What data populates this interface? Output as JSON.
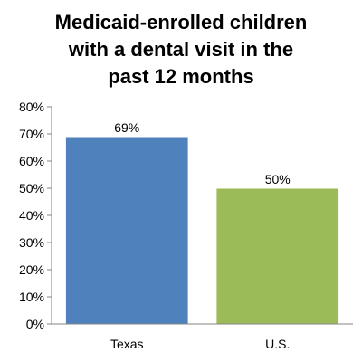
{
  "chart_data": {
    "type": "bar",
    "title_lines": [
      "Medicaid-enrolled children",
      "with a dental visit in the",
      "past 12 months"
    ],
    "categories": [
      "Texas",
      "U.S."
    ],
    "values": [
      69,
      50
    ],
    "data_labels": [
      "69%",
      "50%"
    ],
    "ylim": [
      0,
      80
    ],
    "y_ticks": [
      0,
      10,
      20,
      30,
      40,
      50,
      60,
      70,
      80
    ],
    "y_tick_labels": [
      "0%",
      "10%",
      "20%",
      "30%",
      "40%",
      "50%",
      "60%",
      "70%",
      "80%"
    ],
    "xlabel": "",
    "ylabel": "",
    "grid": false,
    "legend": "none",
    "colors": [
      "#4F81BD",
      "#9BBB59"
    ]
  }
}
